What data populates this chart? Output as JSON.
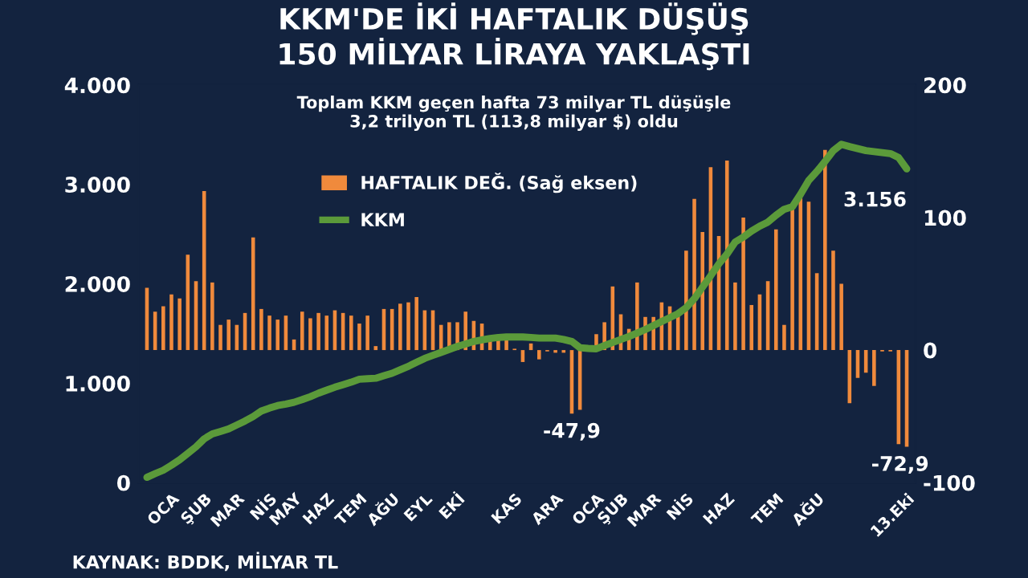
{
  "chart_data": {
    "type": "bar",
    "title": "KKM'DE İKİ HAFTALIK DÜŞÜŞ\n150 MİLYAR LİRAYA YAKLAŞTI",
    "subtitle": "Toplam KKM geçen hafta 73 milyar TL düşüşle\n3,2 trilyon TL (113,8 milyar $) oldu",
    "annotations": [
      "KAYNAK: BDDK, MİLYAR TL"
    ],
    "categories": [
      null,
      null,
      null,
      "OCA",
      null,
      null,
      null,
      "ŞUB",
      null,
      null,
      null,
      "MAR",
      null,
      null,
      null,
      "NİS",
      null,
      null,
      "MAY",
      null,
      null,
      null,
      "HAZ",
      null,
      null,
      null,
      "TEM",
      null,
      null,
      null,
      "AĞU",
      null,
      null,
      null,
      "EYL",
      null,
      null,
      null,
      "EKİ",
      null,
      null,
      null,
      null,
      null,
      null,
      "KAS",
      null,
      null,
      null,
      null,
      "ARA",
      null,
      null,
      null,
      null,
      "OCA",
      null,
      null,
      "ŞUB",
      null,
      null,
      null,
      "MAR",
      null,
      null,
      null,
      "NİS",
      null,
      null,
      null,
      null,
      "HAZ",
      null,
      null,
      null,
      null,
      null,
      "TEM",
      null,
      null,
      null,
      null,
      "AĞU",
      null,
      null,
      null,
      null,
      null,
      null,
      null,
      null,
      null,
      null,
      "13.Eki"
    ],
    "series": [
      {
        "name": "HAFTALIK DEĞ. (Sağ eksen)",
        "axis": "y2",
        "color": "#f08a3c",
        "values": [
          47,
          29,
          33,
          42,
          39,
          72,
          52,
          120,
          51,
          19,
          23,
          19,
          28,
          85,
          31,
          26,
          23,
          26,
          8,
          29,
          24,
          28,
          26,
          30,
          28,
          26,
          20,
          26,
          3,
          31,
          31,
          35,
          36,
          40,
          30,
          30,
          19,
          21,
          21,
          29,
          22,
          20,
          9,
          9,
          8,
          1,
          -9,
          5,
          -7,
          -1,
          -2,
          -2,
          -47.9,
          -45,
          null,
          12,
          21,
          48,
          27,
          16,
          51,
          25,
          25,
          36,
          33,
          27,
          75,
          114,
          89,
          138,
          86,
          143,
          51,
          100,
          34,
          42,
          52,
          91,
          19,
          107,
          116,
          112,
          58,
          151,
          75,
          50,
          -40,
          -21,
          -17,
          -27,
          -1,
          -1,
          -71,
          -72.9
        ],
        "value_labels": [
          null,
          null,
          null,
          null,
          null,
          null,
          null,
          null,
          null,
          null,
          null,
          null,
          null,
          null,
          null,
          null,
          null,
          null,
          null,
          null,
          null,
          null,
          null,
          null,
          null,
          null,
          null,
          null,
          null,
          null,
          null,
          null,
          null,
          null,
          null,
          null,
          null,
          null,
          null,
          null,
          null,
          null,
          null,
          null,
          null,
          null,
          null,
          null,
          null,
          null,
          null,
          null,
          "-47,9",
          null,
          null,
          null,
          null,
          null,
          null,
          null,
          null,
          null,
          null,
          null,
          null,
          null,
          null,
          null,
          null,
          null,
          null,
          null,
          null,
          null,
          null,
          null,
          null,
          null,
          null,
          null,
          null,
          null,
          null,
          null,
          null,
          null,
          null,
          null,
          null,
          null,
          null,
          null,
          null,
          "-72,9"
        ]
      },
      {
        "name": "KKM",
        "type": "line",
        "color": "#5b9a3a",
        "values": [
          53,
          90,
          125,
          175,
          230,
          295,
          360,
          440,
          490,
          515,
          540,
          580,
          620,
          665,
          720,
          750,
          775,
          790,
          808,
          835,
          865,
          900,
          930,
          960,
          985,
          1010,
          1040,
          1045,
          1050,
          1075,
          1100,
          1135,
          1170,
          1210,
          1250,
          1280,
          1310,
          1340,
          1370,
          1395,
          1420,
          1435,
          1450,
          1460,
          1465,
          1465,
          1465,
          1460,
          1454,
          1454,
          1454,
          1440,
          1420,
          1357,
          1350,
          1346,
          1380,
          1410,
          1440,
          1470,
          1505,
          1540,
          1580,
          1620,
          1660,
          1700,
          1760,
          1850,
          1966,
          2080,
          2200,
          2300,
          2420,
          2470,
          2530,
          2580,
          2620,
          2690,
          2750,
          2775,
          2900,
          3040,
          3130,
          3231,
          3339,
          3403,
          3380,
          3360,
          3340,
          3330,
          3320,
          3310,
          3270,
          3156
        ],
        "value_labels": [
          null,
          null,
          null,
          null,
          null,
          null,
          null,
          null,
          null,
          null,
          null,
          null,
          null,
          null,
          null,
          null,
          null,
          null,
          null,
          null,
          null,
          null,
          null,
          null,
          null,
          null,
          null,
          null,
          null,
          null,
          null,
          null,
          null,
          null,
          null,
          null,
          null,
          null,
          null,
          null,
          null,
          null,
          null,
          null,
          null,
          null,
          null,
          null,
          null,
          null,
          null,
          null,
          null,
          null,
          null,
          null,
          null,
          null,
          null,
          null,
          null,
          null,
          null,
          null,
          null,
          null,
          null,
          null,
          null,
          null,
          null,
          null,
          null,
          null,
          null,
          null,
          null,
          null,
          null,
          null,
          null,
          null,
          null,
          null,
          null,
          null,
          null,
          null,
          null,
          null,
          null,
          null,
          null,
          "3.156"
        ]
      }
    ],
    "ylim": [
      0,
      4000
    ],
    "yticks": [
      0,
      {
        "value": 1000,
        "label": "1.000"
      },
      {
        "value": 2000,
        "label": "2.000"
      },
      {
        "value": 3000,
        "label": "3.000"
      },
      {
        "value": 4000,
        "label": "4.000"
      }
    ],
    "y2lim": [
      -100,
      200
    ],
    "y2ticks": [
      -100,
      0,
      100,
      200
    ],
    "legend": "top",
    "grid": false,
    "marker": "none"
  }
}
